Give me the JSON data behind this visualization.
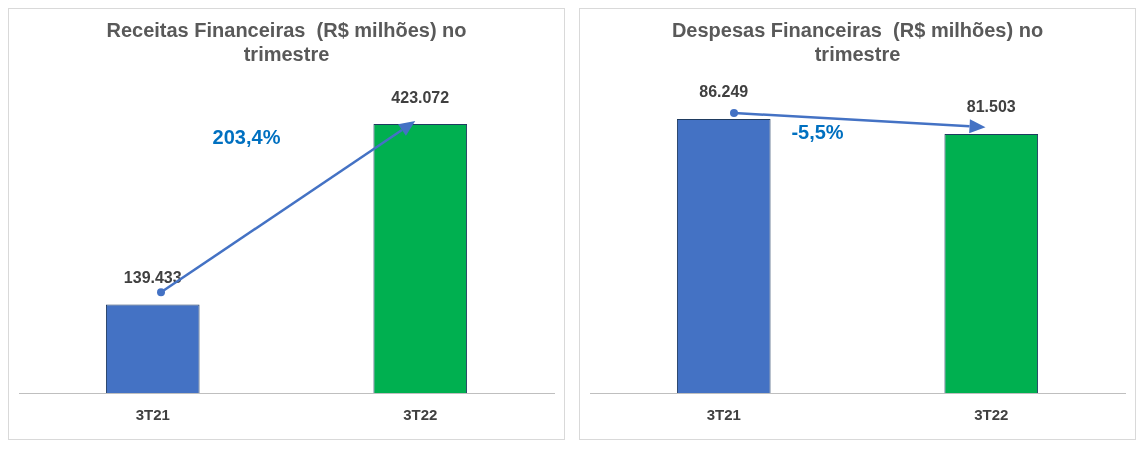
{
  "chart_data": [
    {
      "type": "bar",
      "title": "Receitas Financeiras  (R$ milhões) no trimestre",
      "categories": [
        "3T21",
        "3T22"
      ],
      "values": [
        139.433,
        423.072
      ],
      "colors": [
        "#4472c4",
        "#00b050"
      ],
      "tick_labels": "x",
      "data_labels": true,
      "grid": false,
      "annotations": [
        "203,4%"
      ]
    },
    {
      "type": "bar",
      "title": "Despesas Financeiras  (R$ milhões) no trimestre",
      "categories": [
        "3T21",
        "3T22"
      ],
      "values": [
        86.249,
        81.503
      ],
      "colors": [
        "#4472c4",
        "#00b050"
      ],
      "tick_labels": "x",
      "data_labels": true,
      "grid": false,
      "annotations": [
        "-5,5%"
      ]
    }
  ]
}
